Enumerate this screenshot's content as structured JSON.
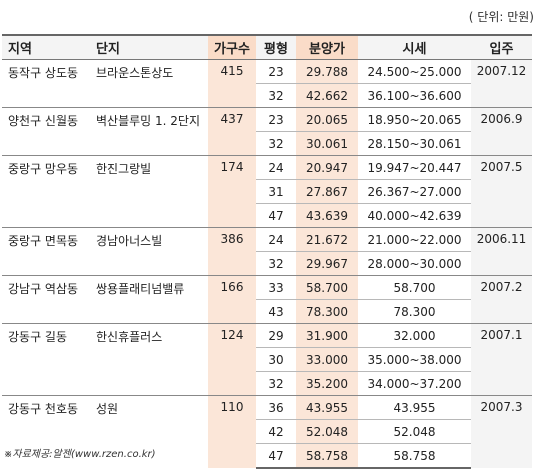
{
  "unit_note": "( 단위: 만원)",
  "headers": {
    "region": "지역",
    "complex": "단지",
    "households": "가구수",
    "area": "평형",
    "sale_price": "분양가",
    "market_price": "시세",
    "move_in": "입주"
  },
  "groups": [
    {
      "region": "동작구 상도동",
      "complex": "브라운스톤상도",
      "households": "415",
      "move_in": "2007.12",
      "rows": [
        {
          "area": "23",
          "sale_price": "29.788",
          "market_price": "24.500~25.000"
        },
        {
          "area": "32",
          "sale_price": "42.662",
          "market_price": "36.100~36.600"
        }
      ]
    },
    {
      "region": "양천구 신월동",
      "complex": "벽산블루밍 1. 2단지",
      "households": "437",
      "move_in": "2006.9",
      "rows": [
        {
          "area": "23",
          "sale_price": "20.065",
          "market_price": "18.950~20.065"
        },
        {
          "area": "32",
          "sale_price": "30.061",
          "market_price": "28.150~30.061"
        }
      ]
    },
    {
      "region": "중랑구 망우동",
      "complex": "한진그랑빌",
      "households": "174",
      "move_in": "2007.5",
      "rows": [
        {
          "area": "24",
          "sale_price": "20.947",
          "market_price": "19.947~20.447"
        },
        {
          "area": "31",
          "sale_price": "27.867",
          "market_price": "26.367~27.000"
        },
        {
          "area": "47",
          "sale_price": "43.639",
          "market_price": "40.000~42.639"
        }
      ]
    },
    {
      "region": "중랑구 면목동",
      "complex": "경남아너스빌",
      "households": "386",
      "move_in": "2006.11",
      "rows": [
        {
          "area": "24",
          "sale_price": "21.672",
          "market_price": "21.000~22.000"
        },
        {
          "area": "32",
          "sale_price": "29.967",
          "market_price": "28.000~30.000"
        }
      ]
    },
    {
      "region": "강남구 역삼동",
      "complex": "쌍용플래티넘밸류",
      "households": "166",
      "move_in": "2007.2",
      "rows": [
        {
          "area": "33",
          "sale_price": "58.700",
          "market_price": "58.700"
        },
        {
          "area": "43",
          "sale_price": "78.300",
          "market_price": "78.300"
        }
      ]
    },
    {
      "region": "강동구 길동",
      "complex": "한신휴플러스",
      "households": "124",
      "move_in": "2007.1",
      "rows": [
        {
          "area": "29",
          "sale_price": "31.900",
          "market_price": "32.000"
        },
        {
          "area": "30",
          "sale_price": "33.000",
          "market_price": "35.000~38.000"
        },
        {
          "area": "32",
          "sale_price": "35.200",
          "market_price": "34.000~37.200"
        }
      ]
    },
    {
      "region": "강동구 천호동",
      "complex": "성원",
      "households": "110",
      "move_in": "2007.3",
      "rows": [
        {
          "area": "36",
          "sale_price": "43.955",
          "market_price": "43.955"
        },
        {
          "area": "42",
          "sale_price": "52.048",
          "market_price": "52.048"
        },
        {
          "area": "47",
          "sale_price": "58.758",
          "market_price": "58.758"
        }
      ]
    }
  ],
  "source_note": "※자료제공:알젠(www.rzen.co.kr)"
}
